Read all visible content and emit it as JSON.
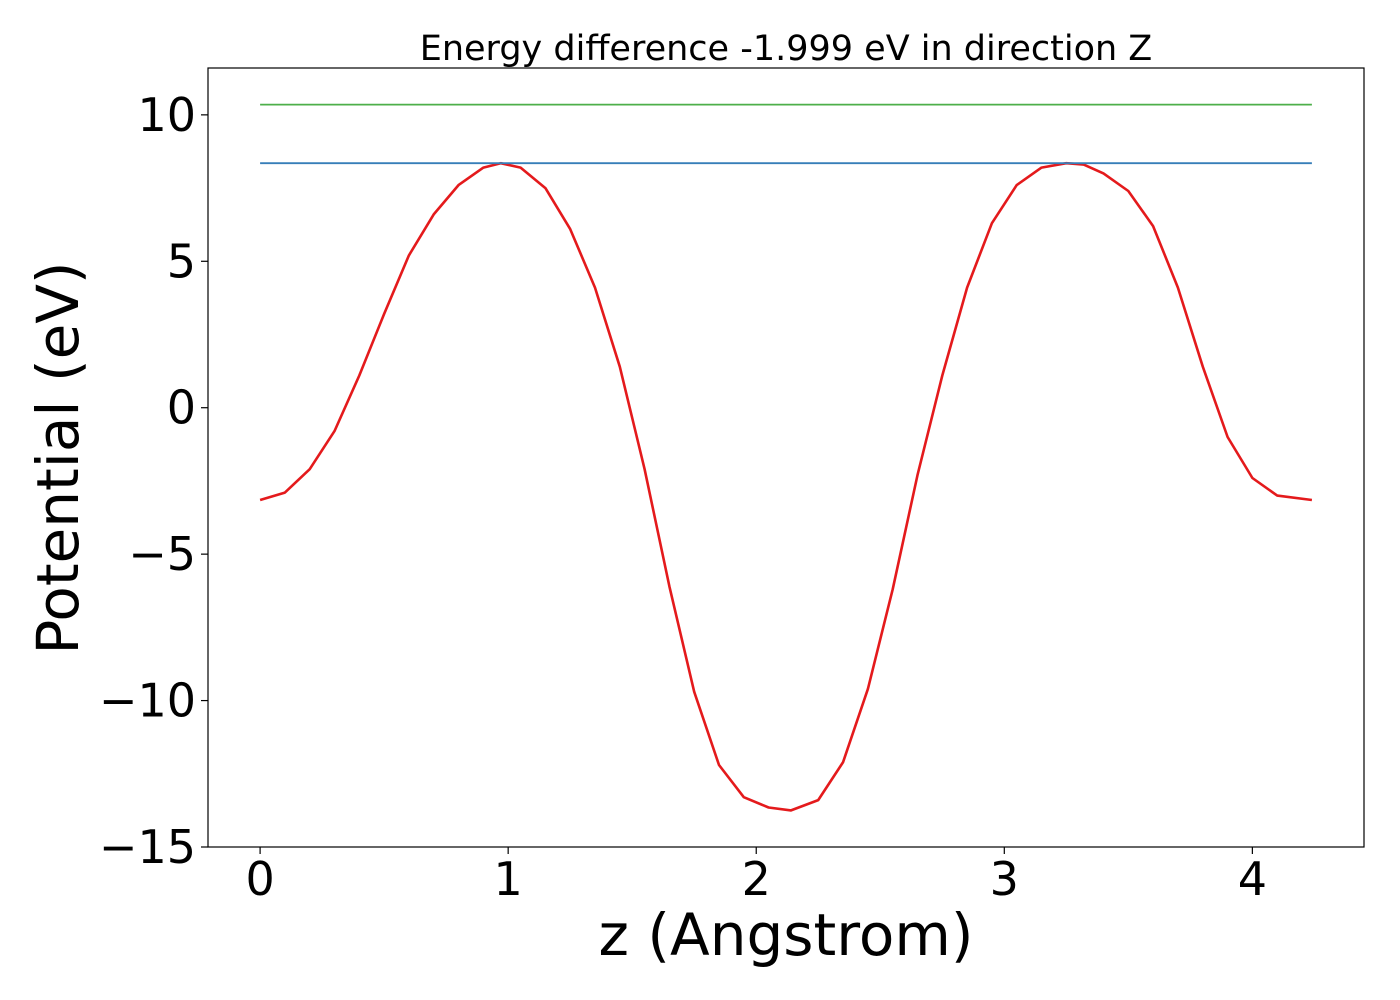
{
  "chart_data": {
    "type": "line",
    "title": "Energy difference -1.999 eV in direction Z",
    "xlabel": "z (Angstrom)",
    "ylabel": "Potential (eV)",
    "xlim": [
      -0.21,
      4.45
    ],
    "ylim": [
      -15,
      11.6
    ],
    "xticks": [
      0,
      1,
      2,
      3,
      4
    ],
    "xtick_labels": [
      "0",
      "1",
      "2",
      "3",
      "4"
    ],
    "yticks": [
      -15,
      -10,
      -5,
      0,
      5,
      10
    ],
    "ytick_labels": [
      "−15",
      "−10",
      "−5",
      "0",
      "5",
      "10"
    ],
    "grid": false,
    "series": [
      {
        "name": "potential",
        "color": "#e41a1c",
        "x": [
          0,
          0.1,
          0.2,
          0.3,
          0.4,
          0.5,
          0.6,
          0.7,
          0.8,
          0.9,
          0.97,
          1.05,
          1.15,
          1.25,
          1.35,
          1.45,
          1.55,
          1.65,
          1.75,
          1.85,
          1.95,
          2.05,
          2.14,
          2.25,
          2.35,
          2.45,
          2.55,
          2.65,
          2.75,
          2.85,
          2.95,
          3.05,
          3.15,
          3.25,
          3.32,
          3.4,
          3.5,
          3.6,
          3.7,
          3.8,
          3.9,
          4.0,
          4.1,
          4.24
        ],
        "y": [
          -3.15,
          -2.9,
          -2.1,
          -0.8,
          1.1,
          3.2,
          5.2,
          6.6,
          7.6,
          8.2,
          8.35,
          8.2,
          7.5,
          6.1,
          4.1,
          1.4,
          -2.1,
          -6.1,
          -9.7,
          -12.2,
          -13.3,
          -13.65,
          -13.75,
          -13.4,
          -12.1,
          -9.6,
          -6.2,
          -2.3,
          1.1,
          4.1,
          6.3,
          7.6,
          8.2,
          8.35,
          8.3,
          8.0,
          7.4,
          6.2,
          4.1,
          1.4,
          -1.0,
          -2.4,
          -3.0,
          -3.15
        ]
      },
      {
        "name": "upper level",
        "color": "#4daf4a",
        "x": [
          0,
          4.24
        ],
        "y": [
          10.35,
          10.35
        ]
      },
      {
        "name": "lower level",
        "color": "#377eb8",
        "x": [
          0,
          4.24
        ],
        "y": [
          8.35,
          8.35
        ]
      }
    ]
  }
}
